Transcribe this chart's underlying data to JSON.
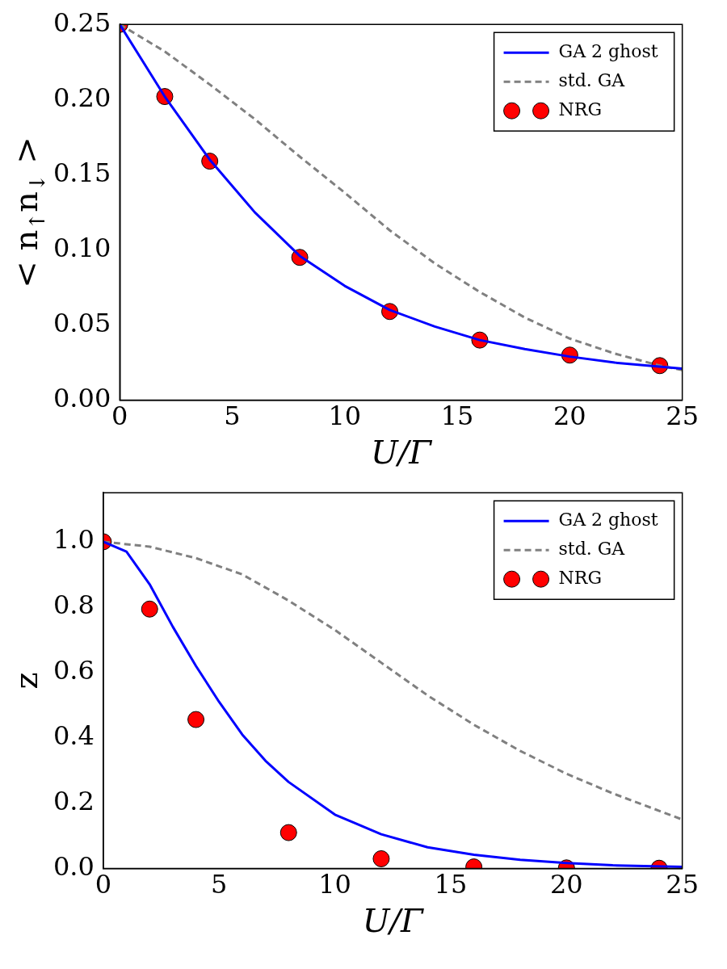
{
  "chart_data": [
    {
      "type": "line",
      "xlabel": "U/Γ",
      "ylabel": "< n$_{↑}$n$_{↓}$ >",
      "xlim": [
        0,
        25
      ],
      "xticks": [
        0,
        5,
        10,
        15,
        20,
        25
      ],
      "ylim": [
        0,
        0.25
      ],
      "yticks": [
        {
          "value": 0,
          "label": "0.00"
        },
        {
          "value": 0.05,
          "label": "0.05"
        },
        {
          "value": 0.1,
          "label": "0.10"
        },
        {
          "value": 0.15,
          "label": "0.15"
        },
        {
          "value": 0.2,
          "label": "0.20"
        },
        {
          "value": 0.25,
          "label": "0.25"
        }
      ],
      "grid": false,
      "legend": "top right",
      "series": [
        {
          "name": "GA 2 ghost",
          "color": "#0000ff",
          "marker": "none",
          "line_style": "solid",
          "x": [
            0,
            2,
            4,
            6,
            8,
            10,
            12,
            14,
            16,
            18,
            20,
            22,
            25
          ],
          "values": [
            0.25,
            0.202,
            0.16,
            0.125,
            0.096,
            0.076,
            0.06,
            0.049,
            0.04,
            0.034,
            0.029,
            0.025,
            0.021
          ]
        },
        {
          "name": "std. GA",
          "color": "#808080",
          "marker": "none",
          "line_style": "dashed",
          "x": [
            0,
            2,
            4,
            6,
            8,
            10,
            12,
            14,
            16,
            18,
            20,
            22,
            24,
            25
          ],
          "values": [
            0.25,
            0.232,
            0.21,
            0.187,
            0.162,
            0.138,
            0.113,
            0.091,
            0.072,
            0.055,
            0.041,
            0.031,
            0.023,
            0.02
          ]
        },
        {
          "name": "NRG",
          "type": "scatter",
          "color": "#ff0000",
          "marker": "circle",
          "x": [
            0,
            2,
            4,
            8,
            12,
            16,
            20,
            24
          ],
          "values": [
            0.25,
            0.202,
            0.159,
            0.095,
            0.059,
            0.04,
            0.03,
            0.023
          ]
        }
      ]
    },
    {
      "type": "line",
      "xlabel": "U/Γ",
      "ylabel": "z",
      "xlim": [
        0,
        25
      ],
      "xticks": [
        0,
        5,
        10,
        15,
        20,
        25
      ],
      "ylim": [
        0,
        1.15
      ],
      "yticks": [
        {
          "value": 0,
          "label": "0.0"
        },
        {
          "value": 0.2,
          "label": "0.2"
        },
        {
          "value": 0.4,
          "label": "0.4"
        },
        {
          "value": 0.6,
          "label": "0.6"
        },
        {
          "value": 0.8,
          "label": "0.8"
        },
        {
          "value": 1,
          "label": "1.0"
        }
      ],
      "grid": false,
      "legend": "top right",
      "series": [
        {
          "name": "GA 2 ghost",
          "color": "#0000ff",
          "marker": "none",
          "line_style": "solid",
          "x": [
            0,
            1,
            2,
            3,
            4,
            5,
            6,
            7,
            8,
            10,
            12,
            14,
            16,
            18,
            20,
            22,
            25
          ],
          "values": [
            1.0,
            0.97,
            0.87,
            0.74,
            0.62,
            0.51,
            0.41,
            0.33,
            0.265,
            0.165,
            0.105,
            0.065,
            0.042,
            0.027,
            0.017,
            0.01,
            0.005
          ]
        },
        {
          "name": "std. GA",
          "color": "#808080",
          "marker": "none",
          "line_style": "dashed",
          "x": [
            0,
            2,
            4,
            6,
            8,
            10,
            12,
            14,
            16,
            18,
            20,
            22,
            25
          ],
          "values": [
            1.0,
            0.985,
            0.95,
            0.9,
            0.82,
            0.73,
            0.63,
            0.53,
            0.44,
            0.36,
            0.29,
            0.23,
            0.15
          ]
        },
        {
          "name": "NRG",
          "type": "scatter",
          "color": "#ff0000",
          "marker": "circle",
          "x": [
            0,
            2,
            4,
            8,
            12,
            16,
            20,
            24
          ],
          "values": [
            1.0,
            0.794,
            0.456,
            0.11,
            0.03,
            0.005,
            0.002,
            0.001
          ]
        }
      ]
    }
  ]
}
